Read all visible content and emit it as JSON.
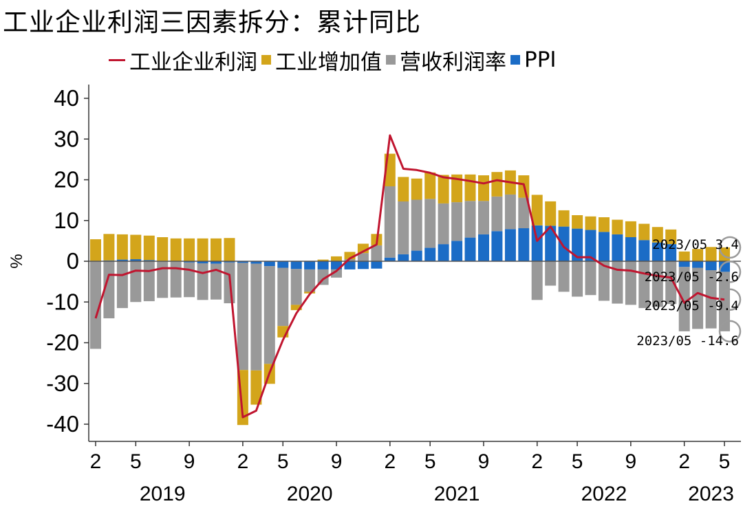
{
  "title": "工业企业利润三因素拆分：累计同比",
  "legend": [
    {
      "label": "工业企业利润",
      "color": "#C0152F",
      "kind": "line"
    },
    {
      "label": "工业增加值",
      "color": "#D3A51B",
      "kind": "box"
    },
    {
      "label": "营收利润率",
      "color": "#999999",
      "kind": "box"
    },
    {
      "label": "PPI",
      "color": "#1B6CC6",
      "kind": "box"
    }
  ],
  "chart_data": {
    "type": "bar",
    "title": "工业企业利润三因素拆分：累计同比",
    "ylabel": "%",
    "ylim": [
      -40,
      40
    ],
    "yticks": [
      40,
      30,
      20,
      10,
      0,
      -10,
      -20,
      -30,
      -40
    ],
    "x": [
      "2019-02",
      "2019-03",
      "2019-04",
      "2019-05",
      "2019-06",
      "2019-07",
      "2019-08",
      "2019-09",
      "2019-10",
      "2019-11",
      "2019-12",
      "2020-02",
      "2020-03",
      "2020-04",
      "2020-05",
      "2020-06",
      "2020-07",
      "2020-08",
      "2020-09",
      "2020-10",
      "2020-11",
      "2020-12",
      "2021-02",
      "2021-03",
      "2021-04",
      "2021-05",
      "2021-06",
      "2021-07",
      "2021-08",
      "2021-09",
      "2021-10",
      "2021-11",
      "2021-12",
      "2022-02",
      "2022-03",
      "2022-04",
      "2022-05",
      "2022-06",
      "2022-07",
      "2022-08",
      "2022-09",
      "2022-10",
      "2022-11",
      "2022-12",
      "2023-02",
      "2023-03",
      "2023-04",
      "2023-05"
    ],
    "xtick_labels": [
      {
        "label": "2",
        "x": "2019-02"
      },
      {
        "label": "5",
        "x": "2019-05"
      },
      {
        "label": "9",
        "x": "2019-09"
      },
      {
        "label": "2",
        "x": "2020-02"
      },
      {
        "label": "5",
        "x": "2020-05"
      },
      {
        "label": "9",
        "x": "2020-09"
      },
      {
        "label": "2",
        "x": "2021-02"
      },
      {
        "label": "5",
        "x": "2021-05"
      },
      {
        "label": "9",
        "x": "2021-09"
      },
      {
        "label": "2",
        "x": "2022-02"
      },
      {
        "label": "5",
        "x": "2022-05"
      },
      {
        "label": "9",
        "x": "2022-09"
      },
      {
        "label": "2",
        "x": "2023-02"
      },
      {
        "label": "5",
        "x": "2023-05"
      }
    ],
    "year_labels": [
      {
        "label": "2019",
        "x": "2019-07"
      },
      {
        "label": "2020",
        "x": "2020-07"
      },
      {
        "label": "2021",
        "x": "2021-07"
      },
      {
        "label": "2022",
        "x": "2022-07"
      },
      {
        "label": "2023",
        "x": "2023-04"
      }
    ],
    "series": [
      {
        "name": "工业企业利润",
        "type": "line",
        "values": [
          -14,
          -3.3,
          -3.4,
          -2.3,
          -2.4,
          -1.7,
          -1.7,
          -2.1,
          -2.9,
          -2.1,
          -3.3,
          -38.3,
          -36.7,
          -27.4,
          -19.3,
          -12.8,
          -8.1,
          -4.4,
          -2.4,
          0.7,
          2.4,
          4.1,
          30.9,
          22.7,
          22.4,
          21.7,
          20.6,
          20.2,
          19.7,
          19.1,
          19.9,
          19.4,
          18.9,
          5.0,
          8.5,
          3.5,
          1.0,
          1.0,
          -1.1,
          -2.1,
          -2.3,
          -3.0,
          -3.6,
          -4.0,
          -10.2,
          -7.8,
          -9.0,
          -9.4
        ]
      },
      {
        "name": "工业增加值",
        "type": "bar",
        "values": [
          5.3,
          6.5,
          6.2,
          6.0,
          6.0,
          5.8,
          5.6,
          5.6,
          5.6,
          5.6,
          5.7,
          -13.5,
          -8.4,
          -4.9,
          -2.8,
          -1.3,
          -0.4,
          0.4,
          1.2,
          1.8,
          2.3,
          2.8,
          8.0,
          6.0,
          5.2,
          6.5,
          7.0,
          6.8,
          6.5,
          6.3,
          6.0,
          5.9,
          5.5,
          7.5,
          6.0,
          4.0,
          3.3,
          3.3,
          3.6,
          3.6,
          3.9,
          4.0,
          3.8,
          3.6,
          2.4,
          3.0,
          3.5,
          3.4
        ]
      },
      {
        "name": "营收利润率",
        "type": "bar",
        "values": [
          -21.5,
          -14,
          -11.5,
          -10,
          -9.8,
          -9,
          -8.8,
          -8.5,
          -9,
          -8.8,
          -10,
          -26.3,
          -26.2,
          -24,
          -14.3,
          -8.8,
          -5.5,
          -3.8,
          -2.0,
          0.5,
          2.0,
          3.9,
          17.5,
          13,
          12.5,
          12,
          10,
          9.5,
          9,
          8.2,
          8.5,
          8.5,
          7.5,
          -9.5,
          -6,
          -7.5,
          -8.7,
          -8.3,
          -9.7,
          -10.4,
          -10.7,
          -11.5,
          -11.2,
          -10.5,
          -15.8,
          -15,
          -14.3,
          -14.6
        ]
      },
      {
        "name": "PPI",
        "type": "bar",
        "values": [
          0.1,
          0.2,
          0.4,
          0.5,
          0.3,
          0.1,
          -0.1,
          -0.3,
          -0.5,
          -0.6,
          -0.3,
          -0.4,
          -0.6,
          -1.2,
          -1.6,
          -1.9,
          -2.0,
          -2.0,
          -2.0,
          -2.0,
          -1.9,
          -1.8,
          0.9,
          1.7,
          2.6,
          3.3,
          4.2,
          5.0,
          5.8,
          6.6,
          7.4,
          7.9,
          8.1,
          8.8,
          8.7,
          8.5,
          8.0,
          7.7,
          7.2,
          6.6,
          5.9,
          5.2,
          4.6,
          4.2,
          -1.4,
          -1.6,
          -2.2,
          -2.6
        ]
      }
    ],
    "annotations": [
      {
        "text": "2023/05  3.4",
        "series": "工业增加值",
        "value": 3.4
      },
      {
        "text": "2023/05  -2.6",
        "series": "PPI",
        "value": -2.6
      },
      {
        "text": "2023/05  -9.4",
        "series": "工业企业利润",
        "value": -9.4
      },
      {
        "text": "2023/05  -14.6",
        "series": "营收利润率",
        "value": -14.6
      }
    ],
    "grid": false,
    "legend_position": "top"
  }
}
